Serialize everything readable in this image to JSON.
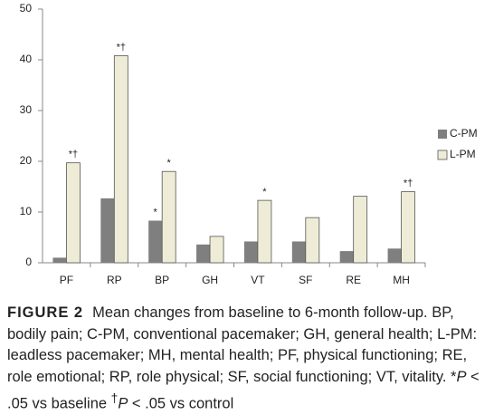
{
  "chart_data": {
    "type": "bar",
    "categories": [
      "PF",
      "RP",
      "BP",
      "GH",
      "VT",
      "SF",
      "RE",
      "MH"
    ],
    "series": [
      {
        "name": "C-PM",
        "color": "#7f7f7f",
        "values": [
          1.0,
          12.7,
          8.3,
          3.6,
          4.2,
          4.2,
          2.3,
          2.8
        ],
        "markers": [
          null,
          null,
          "*",
          null,
          null,
          null,
          null,
          null
        ]
      },
      {
        "name": "L-PM",
        "color": "#eeecd6",
        "values": [
          19.7,
          40.8,
          18.0,
          5.2,
          12.3,
          8.9,
          13.1,
          14.0
        ],
        "markers": [
          "*†",
          "*†",
          "*",
          null,
          "*",
          null,
          null,
          "*†"
        ]
      }
    ],
    "ylim": [
      0,
      50
    ],
    "yticks": [
      0,
      10,
      20,
      30,
      40,
      50
    ],
    "grid": false,
    "legend": "right"
  },
  "caption": {
    "label": "FIGURE 2",
    "parts": [
      "Mean changes from baseline to 6-month follow-up. BP, bodily pain; C-PM, conventional pacemaker; GH, general health; L-PM: leadless pacemaker; MH, mental health; PF, physical functioning; RE, role emotional; RP, role physical; SF, social functioning; VT, vitality. *",
      "P",
      " < .05 vs baseline ",
      "†",
      "P",
      " < .05 vs control"
    ]
  }
}
